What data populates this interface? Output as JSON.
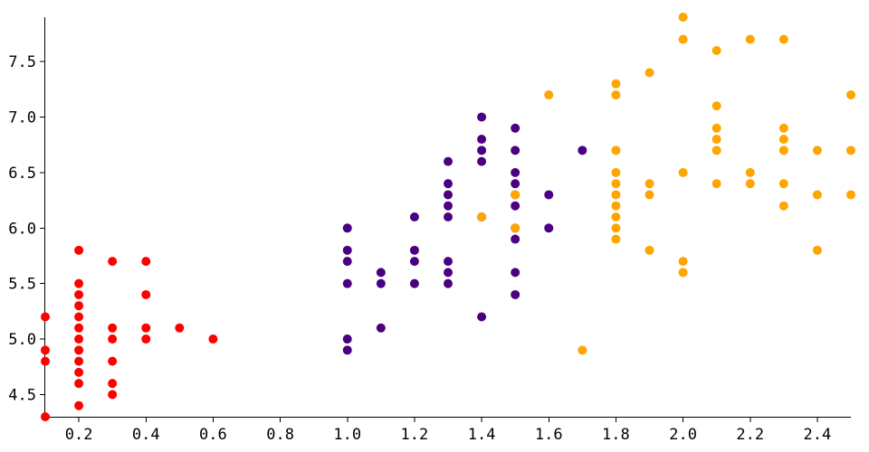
{
  "chart_data": {
    "type": "scatter",
    "title": "",
    "xlabel": "",
    "ylabel": "",
    "xlim": [
      0.1,
      2.5
    ],
    "ylim": [
      4.3,
      7.9
    ],
    "x_ticks": [
      "0.2",
      "0.4",
      "0.6",
      "0.8",
      "1.0",
      "1.2",
      "1.4",
      "1.6",
      "1.8",
      "2.0",
      "2.2",
      "2.4"
    ],
    "y_ticks": [
      "4.5",
      "5.0",
      "5.5",
      "6.0",
      "6.5",
      "7.0",
      "7.5"
    ],
    "grid": false,
    "legend": "none",
    "series": [
      {
        "color": "#ff0000",
        "points": [
          [
            0.1,
            5.2
          ],
          [
            0.1,
            4.9
          ],
          [
            0.1,
            4.8
          ],
          [
            0.1,
            4.3
          ],
          [
            0.2,
            5.8
          ],
          [
            0.2,
            5.5
          ],
          [
            0.2,
            5.4
          ],
          [
            0.2,
            5.3
          ],
          [
            0.2,
            5.2
          ],
          [
            0.2,
            5.1
          ],
          [
            0.2,
            5.0
          ],
          [
            0.2,
            4.9
          ],
          [
            0.2,
            4.8
          ],
          [
            0.2,
            4.7
          ],
          [
            0.2,
            4.6
          ],
          [
            0.2,
            4.4
          ],
          [
            0.3,
            5.7
          ],
          [
            0.3,
            5.1
          ],
          [
            0.3,
            5.0
          ],
          [
            0.3,
            4.8
          ],
          [
            0.3,
            4.6
          ],
          [
            0.3,
            4.5
          ],
          [
            0.4,
            5.7
          ],
          [
            0.4,
            5.4
          ],
          [
            0.4,
            5.1
          ],
          [
            0.4,
            5.0
          ],
          [
            0.5,
            5.1
          ],
          [
            0.6,
            5.0
          ]
        ]
      },
      {
        "color": "#4b0082",
        "points": [
          [
            1.0,
            6.0
          ],
          [
            1.0,
            5.8
          ],
          [
            1.0,
            5.7
          ],
          [
            1.0,
            5.5
          ],
          [
            1.0,
            5.0
          ],
          [
            1.0,
            4.9
          ],
          [
            1.1,
            5.6
          ],
          [
            1.1,
            5.5
          ],
          [
            1.1,
            5.1
          ],
          [
            1.2,
            6.1
          ],
          [
            1.2,
            5.8
          ],
          [
            1.2,
            5.7
          ],
          [
            1.2,
            5.5
          ],
          [
            1.3,
            6.6
          ],
          [
            1.3,
            6.4
          ],
          [
            1.3,
            6.3
          ],
          [
            1.3,
            6.2
          ],
          [
            1.3,
            6.1
          ],
          [
            1.3,
            5.7
          ],
          [
            1.3,
            5.6
          ],
          [
            1.3,
            5.5
          ],
          [
            1.4,
            7.0
          ],
          [
            1.4,
            6.8
          ],
          [
            1.4,
            6.7
          ],
          [
            1.4,
            6.6
          ],
          [
            1.4,
            6.1
          ],
          [
            1.4,
            5.2
          ],
          [
            1.5,
            6.9
          ],
          [
            1.5,
            6.7
          ],
          [
            1.5,
            6.5
          ],
          [
            1.5,
            6.4
          ],
          [
            1.5,
            6.3
          ],
          [
            1.5,
            6.2
          ],
          [
            1.5,
            6.0
          ],
          [
            1.5,
            5.9
          ],
          [
            1.5,
            5.6
          ],
          [
            1.5,
            5.4
          ],
          [
            1.6,
            6.3
          ],
          [
            1.6,
            6.0
          ],
          [
            1.7,
            6.7
          ]
        ]
      },
      {
        "color": "#ffa500",
        "points": [
          [
            1.4,
            6.1
          ],
          [
            1.5,
            6.3
          ],
          [
            1.5,
            6.0
          ],
          [
            1.6,
            7.2
          ],
          [
            1.7,
            4.9
          ],
          [
            1.8,
            7.3
          ],
          [
            1.8,
            7.2
          ],
          [
            1.8,
            6.7
          ],
          [
            1.8,
            6.5
          ],
          [
            1.8,
            6.4
          ],
          [
            1.8,
            6.3
          ],
          [
            1.8,
            6.2
          ],
          [
            1.8,
            6.1
          ],
          [
            1.8,
            6.0
          ],
          [
            1.8,
            5.9
          ],
          [
            1.9,
            7.4
          ],
          [
            1.9,
            6.4
          ],
          [
            1.9,
            6.3
          ],
          [
            1.9,
            5.8
          ],
          [
            2.0,
            7.9
          ],
          [
            2.0,
            7.7
          ],
          [
            2.0,
            6.5
          ],
          [
            2.0,
            5.7
          ],
          [
            2.0,
            5.6
          ],
          [
            2.1,
            7.6
          ],
          [
            2.1,
            7.1
          ],
          [
            2.1,
            6.9
          ],
          [
            2.1,
            6.8
          ],
          [
            2.1,
            6.7
          ],
          [
            2.1,
            6.4
          ],
          [
            2.2,
            7.7
          ],
          [
            2.2,
            6.5
          ],
          [
            2.2,
            6.4
          ],
          [
            2.3,
            7.7
          ],
          [
            2.3,
            6.9
          ],
          [
            2.3,
            6.8
          ],
          [
            2.3,
            6.7
          ],
          [
            2.3,
            6.4
          ],
          [
            2.3,
            6.2
          ],
          [
            2.4,
            6.7
          ],
          [
            2.4,
            6.3
          ],
          [
            2.4,
            5.8
          ],
          [
            2.5,
            7.2
          ],
          [
            2.5,
            6.7
          ],
          [
            2.5,
            6.3
          ]
        ]
      }
    ]
  }
}
